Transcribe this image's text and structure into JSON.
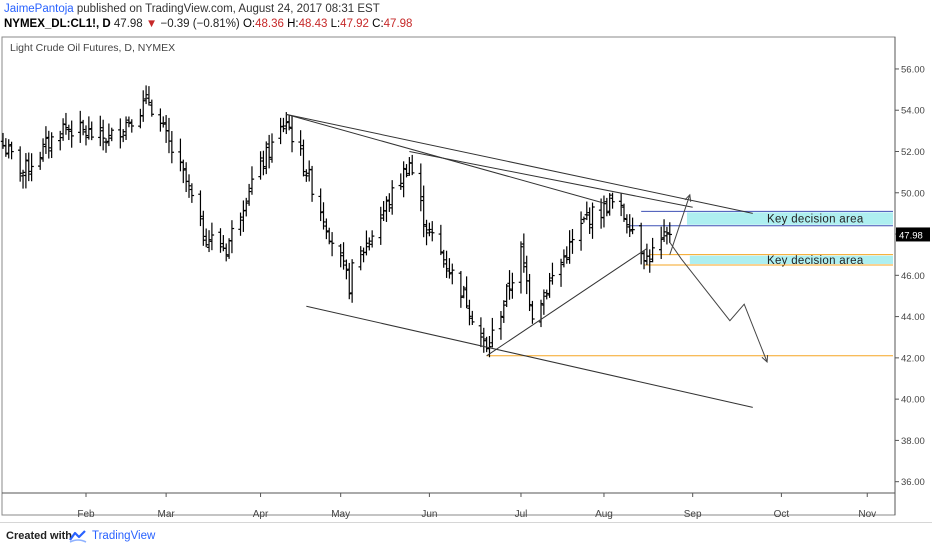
{
  "header": {
    "author": "JaimePantoja",
    "published": "published on TradingView.com, August 24, 2017 08:31 EST",
    "symbol": "NYMEX_DL:CL1!, D",
    "last": "47.98",
    "change_arrow": "▼",
    "change": "−0.39 (−0.81%)",
    "o_label": "O:",
    "o_value": "48.36",
    "h_label": "H:",
    "h_value": "48.43",
    "l_label": "L:",
    "l_value": "47.92",
    "c_label": "C:",
    "c_value": "47.98"
  },
  "chart_data": {
    "type": "ohlc",
    "title": "Light Crude Oil Futures, D, NYMEX",
    "price_axis": {
      "min": 35.5,
      "max": 57.5,
      "ticks": [
        "56.00",
        "54.00",
        "52.00",
        "50.00",
        "48.00",
        "46.00",
        "44.00",
        "42.00",
        "40.00",
        "38.00",
        "36.00"
      ]
    },
    "time_axis": {
      "start": "2017-01-03",
      "end": "2017-11-10",
      "ticks": [
        {
          "date": "2017-02-01",
          "label": "Feb"
        },
        {
          "date": "2017-03-01",
          "label": "Mar"
        },
        {
          "date": "2017-04-03",
          "label": "Apr"
        },
        {
          "date": "2017-05-01",
          "label": "May"
        },
        {
          "date": "2017-06-01",
          "label": "Jun"
        },
        {
          "date": "2017-07-03",
          "label": "Jul"
        },
        {
          "date": "2017-08-01",
          "label": "Aug"
        },
        {
          "date": "2017-09-01",
          "label": "Sep"
        },
        {
          "date": "2017-10-02",
          "label": "Oct"
        },
        {
          "date": "2017-11-01",
          "label": "Nov"
        }
      ]
    },
    "last_price": {
      "value": 47.98,
      "label": "47.98",
      "color": "#000000"
    },
    "bar_color": "#000000",
    "grid": false,
    "anchors": [
      {
        "date": "2017-01-03",
        "close": 52.3
      },
      {
        "date": "2017-01-10",
        "close": 51.0
      },
      {
        "date": "2017-01-24",
        "close": 53.2
      },
      {
        "date": "2017-02-09",
        "close": 52.6
      },
      {
        "date": "2017-02-23",
        "close": 54.5
      },
      {
        "date": "2017-03-08",
        "close": 50.5
      },
      {
        "date": "2017-03-14",
        "close": 48.0
      },
      {
        "date": "2017-03-22",
        "close": 47.3
      },
      {
        "date": "2017-03-30",
        "close": 50.3
      },
      {
        "date": "2017-04-12",
        "close": 53.5
      },
      {
        "date": "2017-04-20",
        "close": 50.7
      },
      {
        "date": "2017-05-04",
        "close": 45.5
      },
      {
        "date": "2017-05-05",
        "close": 46.2
      },
      {
        "date": "2017-05-25",
        "close": 51.5
      },
      {
        "date": "2017-05-31",
        "close": 48.3
      },
      {
        "date": "2017-06-14",
        "close": 44.8
      },
      {
        "date": "2017-06-21",
        "close": 42.3
      },
      {
        "date": "2017-07-03",
        "close": 47.1
      },
      {
        "date": "2017-07-07",
        "close": 44.2
      },
      {
        "date": "2017-07-26",
        "close": 48.8
      },
      {
        "date": "2017-08-01",
        "close": 49.2
      },
      {
        "date": "2017-08-03",
        "close": 49.6
      },
      {
        "date": "2017-08-10",
        "close": 48.6
      },
      {
        "date": "2017-08-16",
        "close": 46.8
      },
      {
        "date": "2017-08-24",
        "close": 47.98
      }
    ],
    "drawings": {
      "trendlines": [
        {
          "name": "upper-wedge-line",
          "from": {
            "date": "2017-04-12",
            "price": 53.8
          },
          "to": {
            "date": "2017-09-22",
            "price": 49.0
          }
        },
        {
          "name": "wedge-resistance-line",
          "from": {
            "date": "2017-04-12",
            "price": 53.8
          },
          "to": {
            "date": "2017-08-01",
            "price": 49.5
          }
        },
        {
          "name": "wedge-apex-line",
          "from": {
            "date": "2017-05-25",
            "price": 52.0
          },
          "to": {
            "date": "2017-09-01",
            "price": 49.3
          }
        },
        {
          "name": "rising-support-line",
          "from": {
            "date": "2017-06-21",
            "price": 42.1
          },
          "to": {
            "date": "2017-08-16",
            "price": 47.3
          }
        },
        {
          "name": "lower-channel-line",
          "from": {
            "date": "2017-04-19",
            "price": 44.5
          },
          "to": {
            "date": "2017-09-22",
            "price": 39.6
          }
        }
      ],
      "levels": [
        {
          "name": "upper-level-top",
          "price": 49.1,
          "from": "2017-08-14",
          "to": "2017-11-10",
          "color": "#3f51b5"
        },
        {
          "name": "upper-level-bottom",
          "price": 48.4,
          "from": "2017-08-10",
          "to": "2017-11-10",
          "color": "#3f51b5"
        },
        {
          "name": "lower-level-top",
          "price": 47.0,
          "from": "2017-08-17",
          "to": "2017-11-10",
          "color": "#f5a623"
        },
        {
          "name": "lower-level-bottom",
          "price": 46.5,
          "from": "2017-08-15",
          "to": "2017-11-10",
          "color": "#f5a623"
        },
        {
          "name": "target-level",
          "price": 42.1,
          "from": "2017-06-21",
          "to": "2017-11-10",
          "color": "#f5a623"
        }
      ],
      "zones": [
        {
          "name": "upper-key-zone",
          "from": "2017-08-30",
          "to": "2017-11-10",
          "top": 49.05,
          "bottom": 48.45,
          "fill": "#aeeff0",
          "label": "Key decision area"
        },
        {
          "name": "lower-key-zone",
          "from": "2017-08-31",
          "to": "2017-11-10",
          "top": 46.95,
          "bottom": 46.55,
          "fill": "#aeeff0",
          "label": "Key decision area"
        }
      ],
      "arrows": [
        {
          "name": "bullish-path-arrow",
          "points": [
            {
              "date": "2017-08-24",
              "price": 47.0
            },
            {
              "date": "2017-08-31",
              "price": 49.9
            }
          ]
        },
        {
          "name": "bearish-path-arrow",
          "points": [
            {
              "date": "2017-08-24",
              "price": 47.6
            },
            {
              "date": "2017-08-28",
              "price": 46.8
            },
            {
              "date": "2017-09-14",
              "price": 43.8
            },
            {
              "date": "2017-09-19",
              "price": 44.6
            },
            {
              "date": "2017-09-27",
              "price": 41.8
            }
          ]
        }
      ]
    }
  },
  "footer": {
    "created": "Created with",
    "brand": "TradingView"
  }
}
